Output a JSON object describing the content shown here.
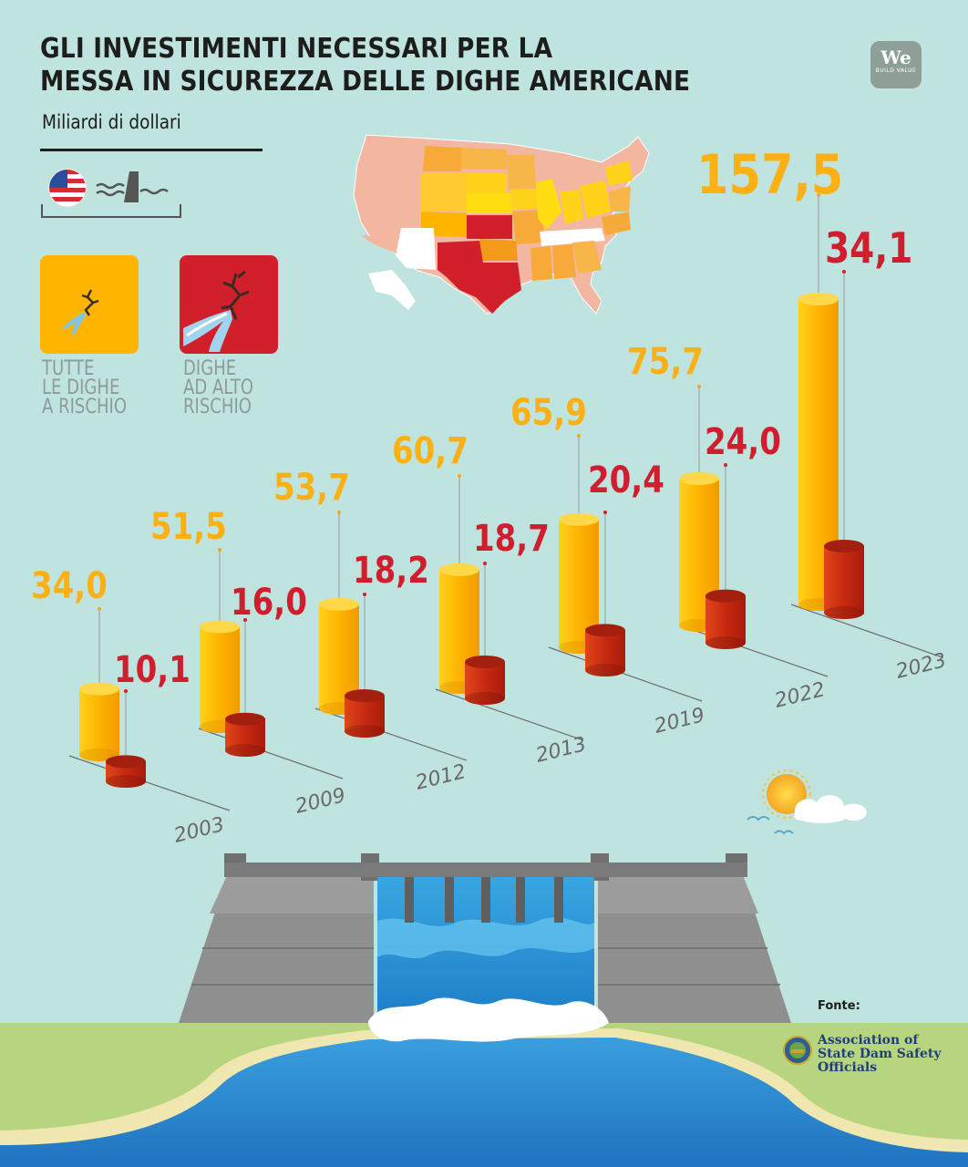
{
  "title_lines": [
    "GLI INVESTIMENTI NECESSARI PER LA",
    "MESSA IN SICUREZZA DELLE DIGHE AMERICANE"
  ],
  "subtitle": "Miliardi di dollari",
  "logo": {
    "text": "We",
    "subtext": "BUILD VALUE"
  },
  "colors": {
    "background": "#bfe4e0",
    "all_dams": "#ffb400",
    "high_risk": "#d11f2c",
    "value_all": "#fbb116",
    "value_high": "#d01e2f"
  },
  "icons": [
    "us-flag-icon",
    "dam-icon",
    "cracked-dam-icon",
    "burst-dam-icon",
    "sun-icon",
    "cloud-icon",
    "birds-icon"
  ],
  "legend": [
    {
      "label": "TUTTE\nLE DIGHE\nA RISCHIO",
      "color": "#ffb400",
      "text_color": "#8e9a98"
    },
    {
      "label": "DIGHE\nAD ALTO\nRISCHIO",
      "color": "#d11f2c",
      "text_color": "#8e9a98"
    }
  ],
  "chart_data": {
    "type": "bar",
    "categories": [
      "2003",
      "2009",
      "2012",
      "2013",
      "2019",
      "2022",
      "2023"
    ],
    "series": [
      {
        "name": "TUTTE LE DIGHE A RISCHIO",
        "values": [
          34.0,
          51.5,
          53.7,
          60.7,
          65.9,
          75.7,
          157.5
        ],
        "labels": [
          "34,0",
          "51,5",
          "53,7",
          "60,7",
          "65,9",
          "75,7",
          "157,5"
        ],
        "color": "#ffb400"
      },
      {
        "name": "DIGHE AD ALTO RISCHIO",
        "values": [
          10.1,
          16.0,
          18.2,
          18.7,
          20.4,
          24.0,
          34.1
        ],
        "labels": [
          "10,1",
          "16,0",
          "18,2",
          "18,7",
          "20,4",
          "24,0",
          "34,1"
        ],
        "color": "#d11f2c"
      }
    ],
    "title": "GLI INVESTIMENTI NECESSARI PER LA MESSA IN SICUREZZA DELLE DIGHE AMERICANE",
    "ylabel": "Miliardi di dollari",
    "xlabel": "",
    "ylim": [
      0,
      160
    ],
    "grid": false
  },
  "source": {
    "label": "Fonte:",
    "name": "Association of State Dam Safety Officials"
  }
}
